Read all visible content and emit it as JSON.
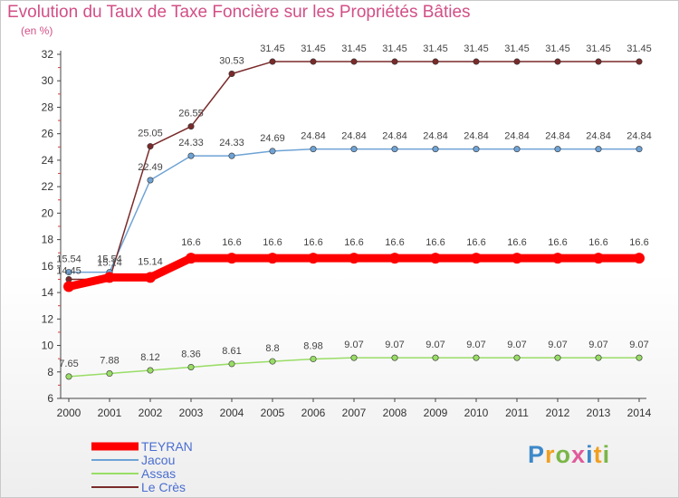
{
  "chart_data": {
    "type": "line",
    "title": "Evolution du Taux de Taxe Foncière sur les Propriétés Bâties",
    "ylabel": "(en %)",
    "xlabel": "",
    "x": [
      "2000",
      "2001",
      "2002",
      "2003",
      "2004",
      "2005",
      "2006",
      "2007",
      "2008",
      "2009",
      "2010",
      "2011",
      "2012",
      "2013",
      "2014"
    ],
    "ylim": [
      6,
      32
    ],
    "yticks": [
      "6",
      "8",
      "10",
      "12",
      "14",
      "16",
      "18",
      "20",
      "22",
      "24",
      "26",
      "28",
      "30",
      "32"
    ],
    "grid": false,
    "legend_position": "bottom-left",
    "series": [
      {
        "name": "TEYRAN",
        "color": "#ff0000",
        "values": [
          14.45,
          15.14,
          15.14,
          16.6,
          16.6,
          16.6,
          16.6,
          16.6,
          16.6,
          16.6,
          16.6,
          16.6,
          16.6,
          16.6,
          16.6
        ],
        "labels": [
          "14.45",
          "15.14",
          "15.14",
          "16.6",
          "16.6",
          "16.6",
          "16.6",
          "16.6",
          "16.6",
          "16.6",
          "16.6",
          "16.6",
          "16.6",
          "16.6",
          "16.6"
        ]
      },
      {
        "name": "Jacou",
        "color": "#6fa3d5",
        "values": [
          15.54,
          15.54,
          22.49,
          24.33,
          24.33,
          24.69,
          24.84,
          24.84,
          24.84,
          24.84,
          24.84,
          24.84,
          24.84,
          24.84,
          24.84
        ],
        "labels": [
          "15.54",
          "15.54",
          "22.49",
          "24.33",
          "24.33",
          "24.69",
          "24.84",
          "24.84",
          "24.84",
          "24.84",
          "24.84",
          "24.84",
          "24.84",
          "24.84",
          "24.84"
        ]
      },
      {
        "name": "Assas",
        "color": "#99dd66",
        "values": [
          7.65,
          7.88,
          8.12,
          8.36,
          8.61,
          8.8,
          8.98,
          9.07,
          9.07,
          9.07,
          9.07,
          9.07,
          9.07,
          9.07,
          9.07
        ],
        "labels": [
          "7.65",
          "7.88",
          "8.12",
          "8.36",
          "8.61",
          "8.8",
          "8.98",
          "9.07",
          "9.07",
          "9.07",
          "9.07",
          "9.07",
          "9.07",
          "9.07",
          "9.07"
        ]
      },
      {
        "name": "Le Crès",
        "color": "#7a2a2a",
        "values": [
          15.0,
          15.0,
          25.05,
          26.55,
          30.53,
          31.45,
          31.45,
          31.45,
          31.45,
          31.45,
          31.45,
          31.45,
          31.45,
          31.45,
          31.45
        ],
        "labels": [
          "",
          "",
          "25.05",
          "26.55",
          "30.53",
          "31.45",
          "31.45",
          "31.45",
          "31.45",
          "31.45",
          "31.45",
          "31.45",
          "31.45",
          "31.45",
          "31.45"
        ]
      }
    ]
  },
  "logo": {
    "text": "Proxiti",
    "letters": [
      "P",
      "r",
      "o",
      "x",
      "i",
      "t",
      "i"
    ],
    "colors": [
      "#3d89c9",
      "#f0a020",
      "#7ab648",
      "#e05a9a",
      "#3d89c9",
      "#f0a020",
      "#7ab648"
    ]
  }
}
